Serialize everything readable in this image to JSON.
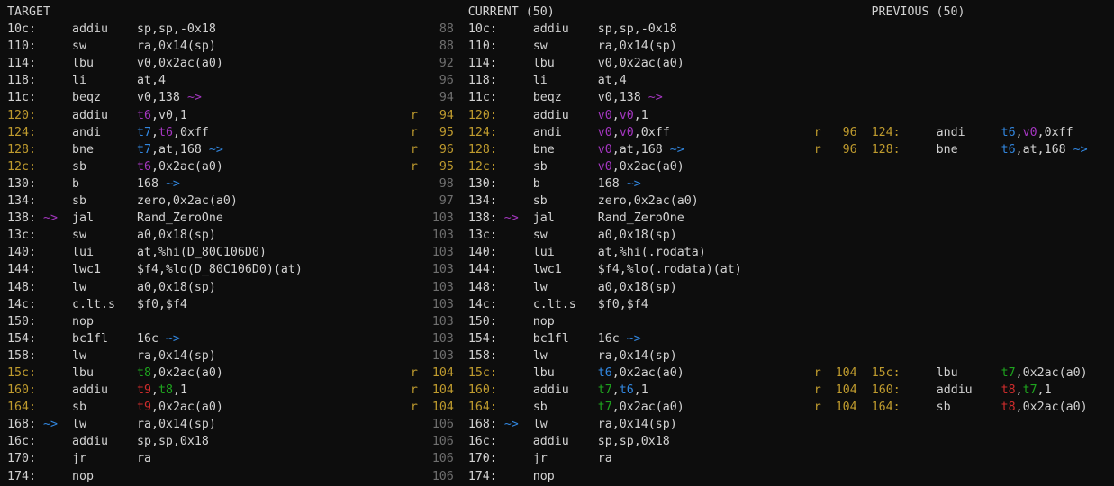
{
  "palette": {
    "bg": "#0d0d0d",
    "fg": "#d2d2d2",
    "dim": "#6f6f6f",
    "y": "#bf9b2e",
    "m": "#a436c0",
    "b": "#3287e0",
    "g": "#1ea31e",
    "r": "#cf2c2c"
  },
  "headers": [
    "TARGET",
    "CURRENT (50)",
    "PREVIOUS (50)"
  ],
  "rows": [
    {
      "header": [
        "TARGET",
        "CURRENT (50)",
        "PREVIOUS (50)"
      ]
    },
    {
      "panes": [
        {
          "a": "10c:",
          "op": "addiu",
          "args": [
            {
              "t": "sp,sp,-0x18"
            }
          ]
        },
        {
          "num": "88",
          "a": "10c:",
          "op": "addiu",
          "args": [
            {
              "t": "sp,sp,-0x18"
            }
          ]
        },
        null
      ]
    },
    {
      "panes": [
        {
          "a": "110:",
          "op": "sw",
          "args": [
            {
              "t": "ra,0x14(sp)"
            }
          ]
        },
        {
          "num": "88",
          "a": "110:",
          "op": "sw",
          "args": [
            {
              "t": "ra,0x14(sp)"
            }
          ]
        },
        null
      ]
    },
    {
      "panes": [
        {
          "a": "114:",
          "op": "lbu",
          "args": [
            {
              "t": "v0,0x2ac(a0)"
            }
          ]
        },
        {
          "num": "92",
          "a": "114:",
          "op": "lbu",
          "args": [
            {
              "t": "v0,0x2ac(a0)"
            }
          ]
        },
        null
      ]
    },
    {
      "panes": [
        {
          "a": "118:",
          "op": "li",
          "args": [
            {
              "t": "at,4"
            }
          ]
        },
        {
          "num": "96",
          "a": "118:",
          "op": "li",
          "args": [
            {
              "t": "at,4"
            }
          ]
        },
        null
      ]
    },
    {
      "panes": [
        {
          "a": "11c:",
          "op": "beqz",
          "args": [
            {
              "t": "v0,138 "
            },
            {
              "t": "~>",
              "c": "m",
              "n": "branch-arrow"
            }
          ]
        },
        {
          "num": "94",
          "a": "11c:",
          "op": "beqz",
          "args": [
            {
              "t": "v0,138 "
            },
            {
              "t": "~>",
              "c": "m",
              "n": "branch-arrow"
            }
          ]
        },
        null
      ]
    },
    {
      "panes": [
        {
          "a": "120:",
          "hot": true,
          "op": "addiu",
          "args": [
            {
              "t": "t6",
              "c": "m"
            },
            {
              "t": ",v0,1"
            }
          ]
        },
        {
          "r": true,
          "num": "94",
          "a": "120:",
          "hot": true,
          "op": "addiu",
          "args": [
            {
              "t": "v0",
              "c": "m"
            },
            {
              "t": ","
            },
            {
              "t": "v0",
              "c": "m"
            },
            {
              "t": ",1"
            }
          ]
        },
        null
      ]
    },
    {
      "panes": [
        {
          "a": "124:",
          "hot": true,
          "op": "andi",
          "args": [
            {
              "t": "t7",
              "c": "b"
            },
            {
              "t": ","
            },
            {
              "t": "t6",
              "c": "m"
            },
            {
              "t": ",0xff"
            }
          ]
        },
        {
          "r": true,
          "num": "95",
          "a": "124:",
          "hot": true,
          "op": "andi",
          "args": [
            {
              "t": "v0",
              "c": "m"
            },
            {
              "t": ","
            },
            {
              "t": "v0",
              "c": "m"
            },
            {
              "t": ",0xff"
            }
          ]
        },
        {
          "r": true,
          "num": "96",
          "a": "124:",
          "hot": true,
          "op": "andi",
          "args": [
            {
              "t": "t6",
              "c": "b"
            },
            {
              "t": ","
            },
            {
              "t": "v0",
              "c": "m"
            },
            {
              "t": ",0xff"
            }
          ]
        }
      ]
    },
    {
      "panes": [
        {
          "a": "128:",
          "hot": true,
          "op": "bne",
          "args": [
            {
              "t": "t7",
              "c": "b"
            },
            {
              "t": ",at,168 "
            },
            {
              "t": "~>",
              "c": "b",
              "n": "branch-arrow"
            }
          ]
        },
        {
          "r": true,
          "num": "96",
          "a": "128:",
          "hot": true,
          "op": "bne",
          "args": [
            {
              "t": "v0",
              "c": "m"
            },
            {
              "t": ",at,168 "
            },
            {
              "t": "~>",
              "c": "b",
              "n": "branch-arrow"
            }
          ]
        },
        {
          "r": true,
          "num": "96",
          "a": "128:",
          "hot": true,
          "op": "bne",
          "args": [
            {
              "t": "t6",
              "c": "b"
            },
            {
              "t": ",at,168 "
            },
            {
              "t": "~>",
              "c": "b",
              "n": "branch-arrow"
            }
          ]
        }
      ]
    },
    {
      "panes": [
        {
          "a": "12c:",
          "hot": true,
          "op": "sb",
          "args": [
            {
              "t": "t6",
              "c": "m"
            },
            {
              "t": ",0x2ac(a0)"
            }
          ]
        },
        {
          "r": true,
          "num": "95",
          "a": "12c:",
          "hot": true,
          "op": "sb",
          "args": [
            {
              "t": "v0",
              "c": "m"
            },
            {
              "t": ",0x2ac(a0)"
            }
          ]
        },
        null
      ]
    },
    {
      "panes": [
        {
          "a": "130:",
          "op": "b",
          "args": [
            {
              "t": "168 "
            },
            {
              "t": "~>",
              "c": "b",
              "n": "branch-arrow"
            }
          ]
        },
        {
          "num": "98",
          "a": "130:",
          "op": "b",
          "args": [
            {
              "t": "168 "
            },
            {
              "t": "~>",
              "c": "b",
              "n": "branch-arrow"
            }
          ]
        },
        null
      ]
    },
    {
      "panes": [
        {
          "a": "134:",
          "op": "sb",
          "args": [
            {
              "t": "zero,0x2ac(a0)"
            }
          ]
        },
        {
          "num": "97",
          "a": "134:",
          "op": "sb",
          "args": [
            {
              "t": "zero,0x2ac(a0)"
            }
          ]
        },
        null
      ]
    },
    {
      "panes": [
        {
          "a": "138:",
          "m": [
            "~>",
            "m"
          ],
          "op": "jal",
          "args": [
            {
              "t": "Rand_ZeroOne"
            }
          ]
        },
        {
          "num": "103",
          "a": "138:",
          "m": [
            "~>",
            "m"
          ],
          "op": "jal",
          "args": [
            {
              "t": "Rand_ZeroOne"
            }
          ]
        },
        null
      ]
    },
    {
      "panes": [
        {
          "a": "13c:",
          "op": "sw",
          "args": [
            {
              "t": "a0,0x18(sp)"
            }
          ]
        },
        {
          "num": "103",
          "a": "13c:",
          "op": "sw",
          "args": [
            {
              "t": "a0,0x18(sp)"
            }
          ]
        },
        null
      ]
    },
    {
      "panes": [
        {
          "a": "140:",
          "op": "lui",
          "args": [
            {
              "t": "at,%hi(D_80C106D0)"
            }
          ]
        },
        {
          "num": "103",
          "a": "140:",
          "op": "lui",
          "args": [
            {
              "t": "at,%hi(.rodata)"
            }
          ]
        },
        null
      ]
    },
    {
      "panes": [
        {
          "a": "144:",
          "op": "lwc1",
          "args": [
            {
              "t": "$f4,%lo(D_80C106D0)(at)"
            }
          ]
        },
        {
          "num": "103",
          "a": "144:",
          "op": "lwc1",
          "args": [
            {
              "t": "$f4,%lo(.rodata)(at)"
            }
          ]
        },
        null
      ]
    },
    {
      "panes": [
        {
          "a": "148:",
          "op": "lw",
          "args": [
            {
              "t": "a0,0x18(sp)"
            }
          ]
        },
        {
          "num": "103",
          "a": "148:",
          "op": "lw",
          "args": [
            {
              "t": "a0,0x18(sp)"
            }
          ]
        },
        null
      ]
    },
    {
      "panes": [
        {
          "a": "14c:",
          "op": "c.lt.s",
          "args": [
            {
              "t": "$f0,$f4"
            }
          ]
        },
        {
          "num": "103",
          "a": "14c:",
          "op": "c.lt.s",
          "args": [
            {
              "t": "$f0,$f4"
            }
          ]
        },
        null
      ]
    },
    {
      "panes": [
        {
          "a": "150:",
          "op": "nop",
          "args": []
        },
        {
          "num": "103",
          "a": "150:",
          "op": "nop",
          "args": []
        },
        null
      ]
    },
    {
      "panes": [
        {
          "a": "154:",
          "op": "bc1fl",
          "args": [
            {
              "t": "16c "
            },
            {
              "t": "~>",
              "c": "b",
              "n": "branch-arrow"
            }
          ]
        },
        {
          "num": "103",
          "a": "154:",
          "op": "bc1fl",
          "args": [
            {
              "t": "16c "
            },
            {
              "t": "~>",
              "c": "b",
              "n": "branch-arrow"
            }
          ]
        },
        null
      ]
    },
    {
      "panes": [
        {
          "a": "158:",
          "op": "lw",
          "args": [
            {
              "t": "ra,0x14(sp)"
            }
          ]
        },
        {
          "num": "103",
          "a": "158:",
          "op": "lw",
          "args": [
            {
              "t": "ra,0x14(sp)"
            }
          ]
        },
        null
      ]
    },
    {
      "panes": [
        {
          "a": "15c:",
          "hot": true,
          "op": "lbu",
          "args": [
            {
              "t": "t8",
              "c": "g"
            },
            {
              "t": ",0x2ac(a0)"
            }
          ]
        },
        {
          "r": true,
          "num": "104",
          "a": "15c:",
          "hot": true,
          "op": "lbu",
          "args": [
            {
              "t": "t6",
              "c": "b"
            },
            {
              "t": ",0x2ac(a0)"
            }
          ]
        },
        {
          "r": true,
          "num": "104",
          "a": "15c:",
          "hot": true,
          "op": "lbu",
          "args": [
            {
              "t": "t7",
              "c": "g"
            },
            {
              "t": ",0x2ac(a0)"
            }
          ]
        }
      ]
    },
    {
      "panes": [
        {
          "a": "160:",
          "hot": true,
          "op": "addiu",
          "args": [
            {
              "t": "t9",
              "c": "r"
            },
            {
              "t": ","
            },
            {
              "t": "t8",
              "c": "g"
            },
            {
              "t": ",1"
            }
          ]
        },
        {
          "r": true,
          "num": "104",
          "a": "160:",
          "hot": true,
          "op": "addiu",
          "args": [
            {
              "t": "t7",
              "c": "g"
            },
            {
              "t": ","
            },
            {
              "t": "t6",
              "c": "b"
            },
            {
              "t": ",1"
            }
          ]
        },
        {
          "r": true,
          "num": "104",
          "a": "160:",
          "hot": true,
          "op": "addiu",
          "args": [
            {
              "t": "t8",
              "c": "r"
            },
            {
              "t": ","
            },
            {
              "t": "t7",
              "c": "g"
            },
            {
              "t": ",1"
            }
          ]
        }
      ]
    },
    {
      "panes": [
        {
          "a": "164:",
          "hot": true,
          "op": "sb",
          "args": [
            {
              "t": "t9",
              "c": "r"
            },
            {
              "t": ",0x2ac(a0)"
            }
          ]
        },
        {
          "r": true,
          "num": "104",
          "a": "164:",
          "hot": true,
          "op": "sb",
          "args": [
            {
              "t": "t7",
              "c": "g"
            },
            {
              "t": ",0x2ac(a0)"
            }
          ]
        },
        {
          "r": true,
          "num": "104",
          "a": "164:",
          "hot": true,
          "op": "sb",
          "args": [
            {
              "t": "t8",
              "c": "r"
            },
            {
              "t": ",0x2ac(a0)"
            }
          ]
        }
      ]
    },
    {
      "panes": [
        {
          "a": "168:",
          "m": [
            "~>",
            "b"
          ],
          "op": "lw",
          "args": [
            {
              "t": "ra,0x14(sp)"
            }
          ]
        },
        {
          "num": "106",
          "a": "168:",
          "m": [
            "~>",
            "b"
          ],
          "op": "lw",
          "args": [
            {
              "t": "ra,0x14(sp)"
            }
          ]
        },
        null
      ]
    },
    {
      "panes": [
        {
          "a": "16c:",
          "op": "addiu",
          "args": [
            {
              "t": "sp,sp,0x18"
            }
          ]
        },
        {
          "num": "106",
          "a": "16c:",
          "op": "addiu",
          "args": [
            {
              "t": "sp,sp,0x18"
            }
          ]
        },
        null
      ]
    },
    {
      "panes": [
        {
          "a": "170:",
          "op": "jr",
          "args": [
            {
              "t": "ra"
            }
          ]
        },
        {
          "num": "106",
          "a": "170:",
          "op": "jr",
          "args": [
            {
              "t": "ra"
            }
          ]
        },
        null
      ]
    },
    {
      "panes": [
        {
          "a": "174:",
          "op": "nop",
          "args": []
        },
        {
          "num": "106",
          "a": "174:",
          "op": "nop",
          "args": []
        },
        null
      ]
    }
  ]
}
